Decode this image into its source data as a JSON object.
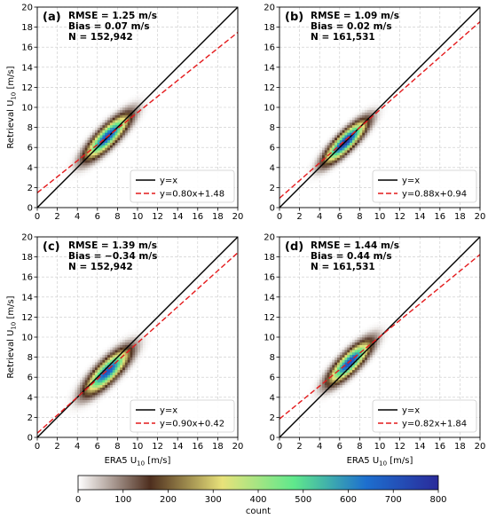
{
  "chart_data": [
    {
      "type": "heatmap",
      "panel_label": "(a)",
      "stats": [
        "RMSE = 1.25 m/s",
        "Bias = 0.07 m/s",
        "N = 152,942"
      ],
      "xlim": [
        0,
        20
      ],
      "ylim": [
        0,
        20
      ],
      "xticks": [
        "0",
        "2",
        "4",
        "6",
        "8",
        "10",
        "12",
        "14",
        "16",
        "18",
        "20"
      ],
      "yticks": [
        "0",
        "2",
        "4",
        "6",
        "8",
        "10",
        "12",
        "14",
        "16",
        "18",
        "20"
      ],
      "xlabel": "",
      "ylabel": "Retrieval U10 [m/s]",
      "fit": {
        "slope": 0.8,
        "intercept": 1.48
      },
      "legend": [
        "y=x",
        "y=0.80x+1.48"
      ],
      "density": {
        "center": [
          7.0,
          7.1
        ],
        "along_sd": 1.9,
        "across_sd": 0.55,
        "peak_count": 720
      }
    },
    {
      "type": "heatmap",
      "panel_label": "(b)",
      "stats": [
        "RMSE = 1.09 m/s",
        "Bias = 0.02 m/s",
        "N = 161,531"
      ],
      "xlim": [
        0,
        20
      ],
      "ylim": [
        0,
        20
      ],
      "xticks": [
        "0",
        "2",
        "4",
        "6",
        "8",
        "10",
        "12",
        "14",
        "16",
        "18",
        "20"
      ],
      "yticks": [
        "0",
        "2",
        "4",
        "6",
        "8",
        "10",
        "12",
        "14",
        "16",
        "18",
        "20"
      ],
      "xlabel": "",
      "ylabel": "",
      "fit": {
        "slope": 0.88,
        "intercept": 0.94
      },
      "legend": [
        "y=x",
        "y=0.88x+0.94"
      ],
      "density": {
        "center": [
          6.6,
          6.6
        ],
        "along_sd": 1.8,
        "across_sd": 0.5,
        "peak_count": 780
      }
    },
    {
      "type": "heatmap",
      "panel_label": "(c)",
      "stats": [
        "RMSE = 1.39 m/s",
        "Bias = −0.34 m/s",
        "N = 152,942"
      ],
      "xlim": [
        0,
        20
      ],
      "ylim": [
        0,
        20
      ],
      "xticks": [
        "0",
        "2",
        "4",
        "6",
        "8",
        "10",
        "12",
        "14",
        "16",
        "18",
        "20"
      ],
      "yticks": [
        "0",
        "2",
        "4",
        "6",
        "8",
        "10",
        "12",
        "14",
        "16",
        "18",
        "20"
      ],
      "xlabel": "ERA5 U10 [m/s]",
      "ylabel": "Retrieval U10 [m/s]",
      "fit": {
        "slope": 0.9,
        "intercept": 0.42
      },
      "legend": [
        "y=x",
        "y=0.90x+0.42"
      ],
      "density": {
        "center": [
          7.0,
          6.6
        ],
        "along_sd": 1.9,
        "across_sd": 0.6,
        "peak_count": 700
      }
    },
    {
      "type": "heatmap",
      "panel_label": "(d)",
      "stats": [
        "RMSE = 1.44 m/s",
        "Bias = 0.44 m/s",
        "N = 161,531"
      ],
      "xlim": [
        0,
        20
      ],
      "ylim": [
        0,
        20
      ],
      "xticks": [
        "0",
        "2",
        "4",
        "6",
        "8",
        "10",
        "12",
        "14",
        "16",
        "18",
        "20"
      ],
      "yticks": [
        "0",
        "2",
        "4",
        "6",
        "8",
        "10",
        "12",
        "14",
        "16",
        "18",
        "20"
      ],
      "xlabel": "ERA5 U10 [m/s]",
      "ylabel": "",
      "fit": {
        "slope": 0.82,
        "intercept": 1.84
      },
      "legend": [
        "y=x",
        "y=0.82x+1.84"
      ],
      "density": {
        "center": [
          7.0,
          7.5
        ],
        "along_sd": 1.8,
        "across_sd": 0.55,
        "peak_count": 720
      }
    }
  ],
  "colorbar": {
    "label": "count",
    "ticks": [
      "0",
      "100",
      "200",
      "300",
      "400",
      "500",
      "600",
      "700",
      "800"
    ],
    "range": [
      0,
      800
    ],
    "colors": [
      "#ffffff",
      "#4e2e1e",
      "#e8e27a",
      "#5fe88c",
      "#1d6fcf",
      "#2a2a9a"
    ]
  }
}
